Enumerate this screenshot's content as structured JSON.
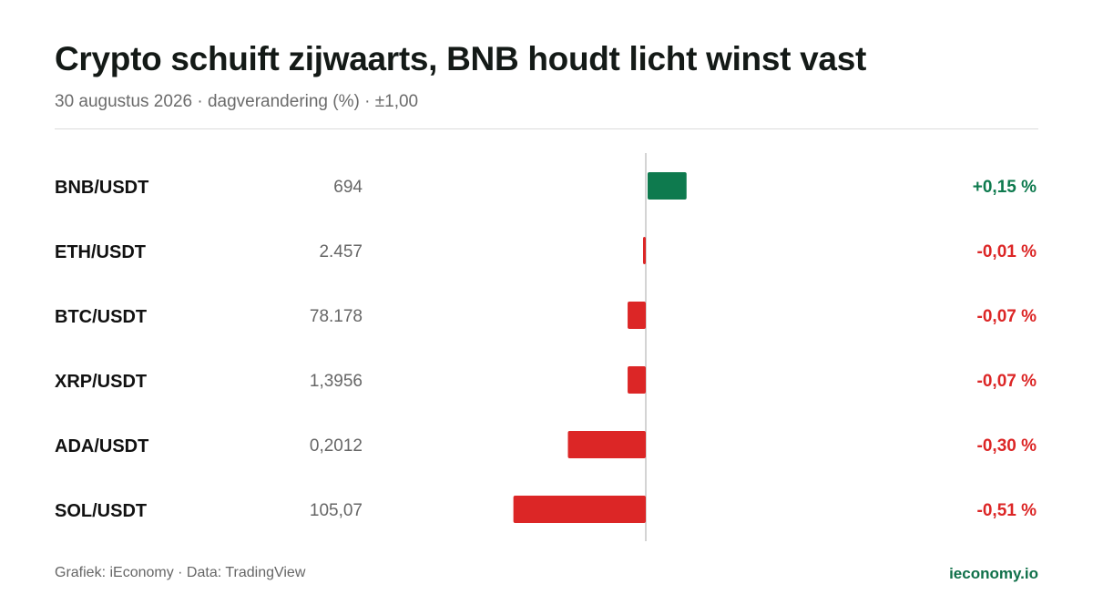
{
  "header": {
    "title": "Crypto schuift zijwaarts, BNB houdt licht winst vast",
    "subtitle": "30 augustus 2026 · dagverandering (%) · ±1,00"
  },
  "footer": {
    "source": "Grafiek: iEconomy · Data: TradingView",
    "brand": "ieconomy.io"
  },
  "colors": {
    "positive": "#0e7a4e",
    "negative": "#dc2626",
    "axis": "#d4d4d4",
    "pair_text": "#111111",
    "price_text": "#666666"
  },
  "chart_data": {
    "type": "bar",
    "orientation": "horizontal",
    "categories": [
      "BNB/USDT",
      "ETH/USDT",
      "BTC/USDT",
      "XRP/USDT",
      "ADA/USDT",
      "SOL/USDT"
    ],
    "prices": [
      "694",
      "2.457",
      "78.178",
      "1,3956",
      "0,2012",
      "105,07"
    ],
    "values": [
      0.15,
      -0.01,
      -0.07,
      -0.07,
      -0.3,
      -0.51
    ],
    "value_labels": [
      "+0,15 %",
      "-0,01 %",
      "-0,07 %",
      "-0,07 %",
      "-0,30 %",
      "-0,51 %"
    ],
    "xlim": [
      -1,
      1
    ],
    "grid": false
  }
}
